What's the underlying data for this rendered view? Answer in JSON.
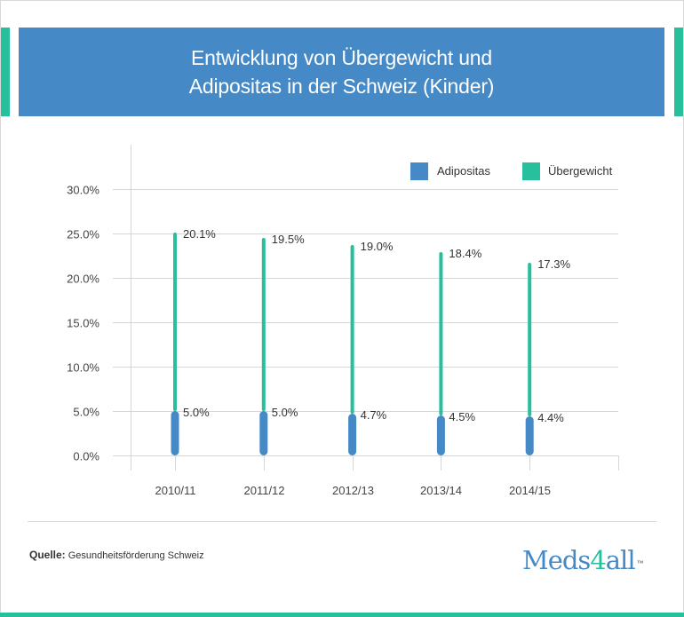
{
  "header": {
    "title": "Entwicklung von Übergewicht und\nAdipositas in der Schweiz (Kinder)"
  },
  "colors": {
    "header_bg": "#4589c6",
    "accent": "#27bf9c",
    "adipositas": "#4589c6",
    "uebergewicht": "#27bf9c"
  },
  "chart_data": {
    "type": "bar",
    "stacked": true,
    "title": "Entwicklung von Übergewicht und Adipositas in der Schweiz (Kinder)",
    "xlabel": "",
    "ylabel": "",
    "categories": [
      "2010/11",
      "2011/12",
      "2012/13",
      "2013/14",
      "2014/15"
    ],
    "series": [
      {
        "name": "Adipositas",
        "color": "#4589c6",
        "values": [
          5.0,
          5.0,
          4.7,
          4.5,
          4.4
        ],
        "labels": [
          "5.0%",
          "5.0%",
          "4.7%",
          "4.5%",
          "4.4%"
        ]
      },
      {
        "name": "Übergewicht",
        "color": "#27bf9c",
        "values": [
          20.1,
          19.5,
          19.0,
          18.4,
          17.3
        ],
        "labels": [
          "20.1%",
          "19.5%",
          "19.0%",
          "18.4%",
          "17.3%"
        ]
      }
    ],
    "ylim": [
      0,
      30
    ],
    "yticks": [
      0,
      5,
      10,
      15,
      20,
      25,
      30
    ],
    "ytick_labels": [
      "0.0%",
      "5.0%",
      "10.0%",
      "15.0%",
      "20.0%",
      "25.0%",
      "30.0%"
    ],
    "grid": true,
    "legend": "top-right"
  },
  "footer": {
    "source_label": "Quelle:",
    "source_text": "Gesundheitsförderung Schweiz",
    "logo_prefix": "Meds",
    "logo_number": "4",
    "logo_suffix": "all",
    "logo_tm": "™"
  }
}
